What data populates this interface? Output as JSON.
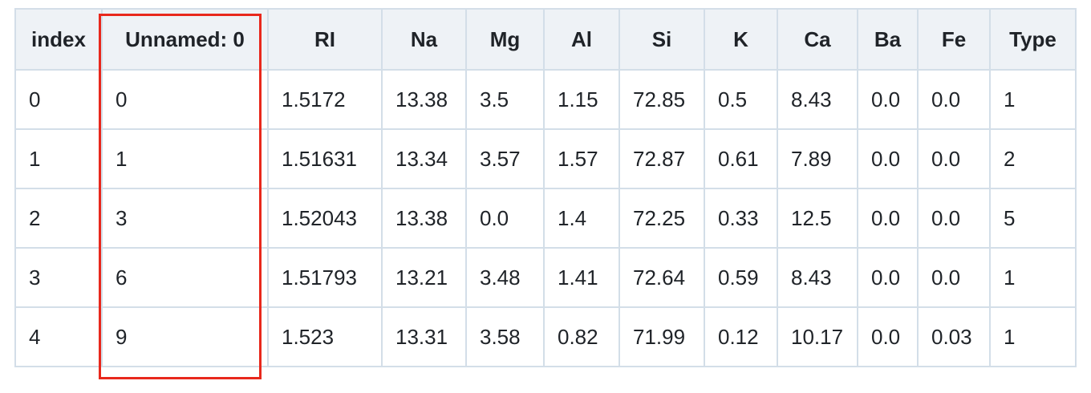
{
  "table": {
    "columns": [
      "index",
      "Unnamed: 0",
      "RI",
      "Na",
      "Mg",
      "Al",
      "Si",
      "K",
      "Ca",
      "Ba",
      "Fe",
      "Type"
    ],
    "rows": [
      [
        "0",
        "0",
        "1.5172",
        "13.38",
        "3.5",
        "1.15",
        "72.85",
        "0.5",
        "8.43",
        "0.0",
        "0.0",
        "1"
      ],
      [
        "1",
        "1",
        "1.51631",
        "13.34",
        "3.57",
        "1.57",
        "72.87",
        "0.61",
        "7.89",
        "0.0",
        "0.0",
        "2"
      ],
      [
        "2",
        "3",
        "1.52043",
        "13.38",
        "0.0",
        "1.4",
        "72.25",
        "0.33",
        "12.5",
        "0.0",
        "0.0",
        "5"
      ],
      [
        "3",
        "6",
        "1.51793",
        "13.21",
        "3.48",
        "1.41",
        "72.64",
        "0.59",
        "8.43",
        "0.0",
        "0.0",
        "1"
      ],
      [
        "4",
        "9",
        "1.523",
        "13.31",
        "3.58",
        "0.82",
        "71.99",
        "0.12",
        "10.17",
        "0.0",
        "0.03",
        "1"
      ]
    ]
  }
}
